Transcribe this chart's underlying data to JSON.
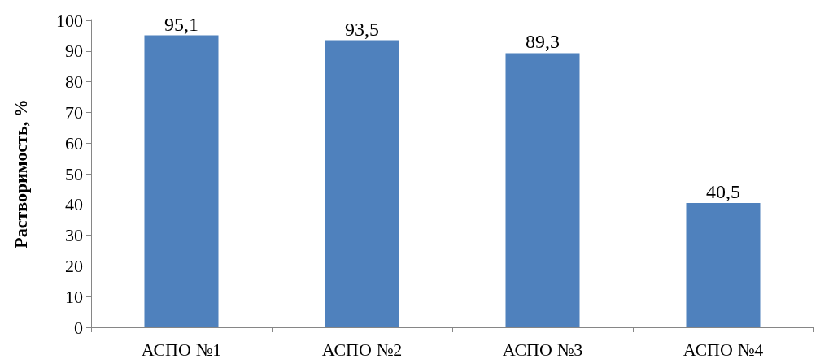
{
  "chart_data": {
    "type": "bar",
    "ylabel": "Растворимость, %",
    "categories": [
      "АСПО №1",
      "АСПО №2",
      "АСПО №3",
      "АСПО №4"
    ],
    "values": [
      95.1,
      93.5,
      89.3,
      40.5
    ],
    "value_labels": [
      "95,1",
      "93,5",
      "89,3",
      "40,5"
    ],
    "color": "#4f81bd",
    "ylim": [
      0,
      100
    ],
    "yticks": [
      0,
      10,
      20,
      30,
      40,
      50,
      60,
      70,
      80,
      90,
      100
    ],
    "grid": false
  }
}
